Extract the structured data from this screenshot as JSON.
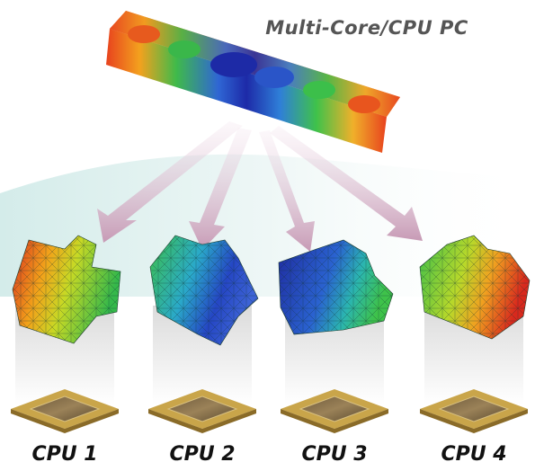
{
  "header": {
    "title": "Multi-Core/CPU PC"
  },
  "nodes": [
    {
      "label": "CPU 1"
    },
    {
      "label": "CPU 2"
    },
    {
      "label": "CPU 3"
    },
    {
      "label": "CPU 4"
    }
  ]
}
